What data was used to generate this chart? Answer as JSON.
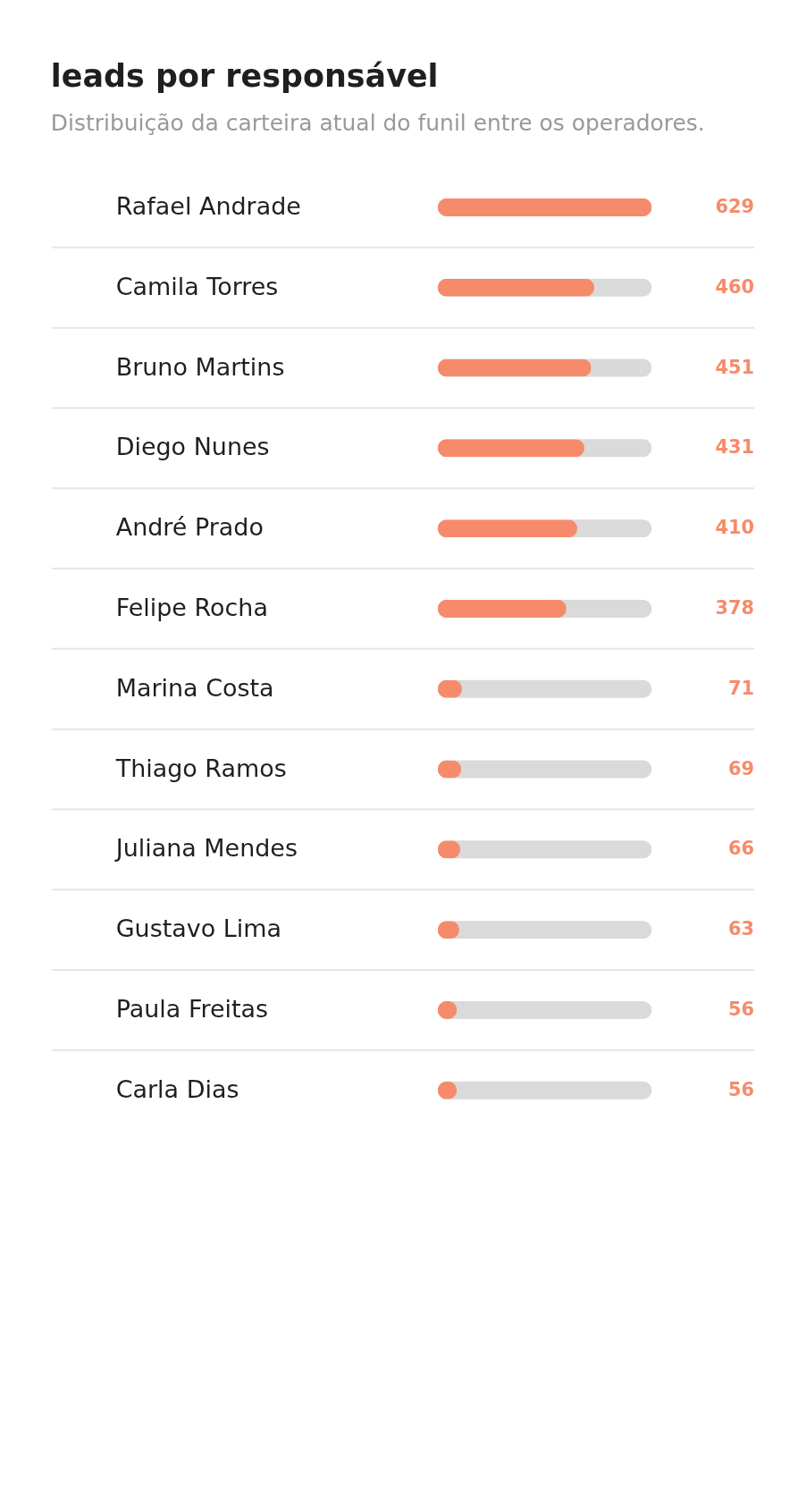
{
  "chart_data": {
    "type": "bar",
    "orientation": "horizontal",
    "title": "leads por responsável",
    "subtitle": "Distribuição da carteira atual do funil entre os operadores.",
    "categories": [
      "Rafael Andrade",
      "Camila Torres",
      "Bruno Martins",
      "Diego Nunes",
      "André Prado",
      "Felipe Rocha",
      "Marina Costa",
      "Thiago Ramos",
      "Juliana Mendes",
      "Gustavo Lima",
      "Paula Freitas",
      "Carla Dias"
    ],
    "values": [
      629,
      460,
      451,
      431,
      410,
      378,
      71,
      69,
      66,
      63,
      56,
      56
    ],
    "color": "#f68b6b",
    "xlim": [
      0,
      629
    ],
    "data_labels": true,
    "tick_labels": "y",
    "grid": "y"
  }
}
